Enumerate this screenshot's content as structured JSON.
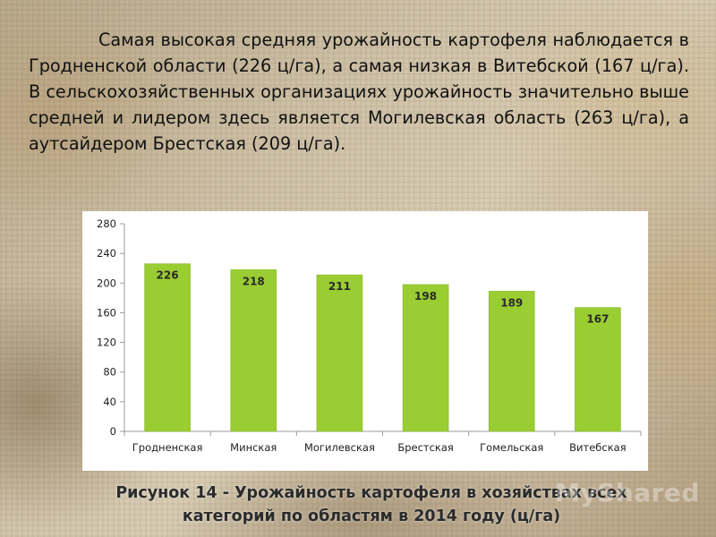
{
  "text": {
    "intro": "Самая высокая средняя урожайность картофеля наблюдается в Гродненской области (226 ц/га), а самая низкая в Витебской (167 ц/га). В сельскохозяйственных организациях урожайность значительно выше средней и лидером здесь является Могилевская область (263 ц/га), а аутсайдером Брестская (209 ц/га).",
    "caption_line1": "Рисунок 14 - Урожайность картофеля в хозяйствах всех",
    "caption_line2": "категорий по областям в 2014 году (ц/га)",
    "watermark": "MyShared"
  },
  "colors": {
    "bar": "#9acd32",
    "bar_edge": "#86b52a",
    "axis": "#9a9a9a",
    "label": "#222222"
  },
  "chart_data": {
    "type": "bar",
    "categories": [
      "Гродненская",
      "Минская",
      "Могилевская",
      "Брестская",
      "Гомельская",
      "Витебская"
    ],
    "values": [
      226,
      218,
      211,
      198,
      189,
      167
    ],
    "ylim": [
      0,
      280
    ],
    "yticks": [
      0,
      40,
      80,
      120,
      160,
      200,
      240,
      280
    ],
    "grid": false,
    "data_labels": true
  }
}
